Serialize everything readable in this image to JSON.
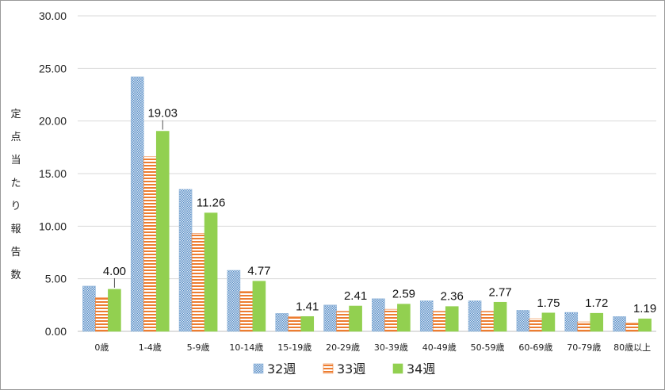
{
  "chart_data": {
    "type": "bar",
    "title": "",
    "xlabel": "",
    "ylabel": "定点当たり報告数",
    "ylim": [
      0,
      30
    ],
    "yticks": [
      "0.00",
      "5.00",
      "10.00",
      "15.00",
      "20.00",
      "25.00",
      "30.00"
    ],
    "grid": true,
    "legend_position": "bottom",
    "categories": [
      "0歳",
      "1-4歳",
      "5-9歳",
      "10-14歳",
      "15-19歳",
      "20-29歳",
      "30-39歳",
      "40-49歳",
      "50-59歳",
      "60-69歳",
      "70-79歳",
      "80歳以上"
    ],
    "series": [
      {
        "name": "32週",
        "color": "#8fb4d9",
        "pattern": "dots",
        "values": [
          4.3,
          24.2,
          13.5,
          5.8,
          1.7,
          2.5,
          3.1,
          2.9,
          2.9,
          2.0,
          1.8,
          1.4
        ]
      },
      {
        "name": "33週",
        "color": "#ed7d31",
        "pattern": "stripes",
        "values": [
          3.2,
          16.6,
          9.3,
          3.8,
          1.4,
          1.9,
          2.1,
          1.9,
          1.9,
          1.2,
          0.9,
          0.8
        ]
      },
      {
        "name": "34週",
        "color": "#92d050",
        "pattern": "solid",
        "values": [
          4.0,
          19.03,
          11.26,
          4.77,
          1.41,
          2.41,
          2.59,
          2.36,
          2.77,
          1.75,
          1.72,
          1.19
        ],
        "labels": [
          "4.00",
          "19.03",
          "11.26",
          "4.77",
          "1.41",
          "2.41",
          "2.59",
          "2.36",
          "2.77",
          "1.75",
          "1.72",
          "1.19"
        ]
      }
    ]
  }
}
